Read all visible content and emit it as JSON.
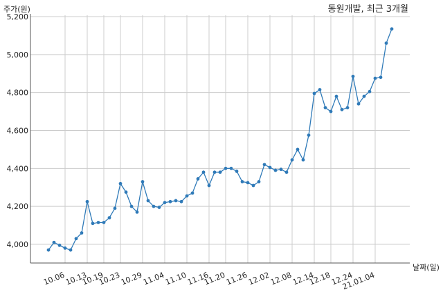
{
  "chart_data": {
    "type": "line",
    "title": "동원개발, 최근 3개월",
    "xlabel": "날짜(일)",
    "ylabel": "주가(원)",
    "ylim": [
      3900,
      5200
    ],
    "yticks": [
      4000,
      4200,
      4400,
      4600,
      4800,
      5000,
      5200
    ],
    "ytick_labels": [
      "4,000",
      "4,200",
      "4,400",
      "4,600",
      "4,800",
      "5,000",
      "5,200"
    ],
    "xtick_labels": [
      "10.06",
      "10.13",
      "10.19",
      "10.23",
      "10.29",
      "11.04",
      "11.10",
      "11.16",
      "11.20",
      "11.26",
      "12.02",
      "12.08",
      "12.14",
      "12.18",
      "12.24",
      "21.01.04"
    ],
    "xtick_index": [
      3,
      7,
      10,
      13,
      17,
      21,
      25,
      29,
      32,
      36,
      40,
      44,
      48,
      51,
      55,
      59
    ],
    "grid": true,
    "line_color": "#2f7ab8",
    "series": [
      {
        "values": [
          3970,
          4010,
          3995,
          3980,
          3970,
          4030,
          4060,
          4225,
          4110,
          4115,
          4115,
          4140,
          4190,
          4320,
          4275,
          4200,
          4170,
          4330,
          4230,
          4200,
          4195,
          4220,
          4225,
          4230,
          4225,
          4255,
          4270,
          4345,
          4380,
          4310,
          4380,
          4380,
          4400,
          4400,
          4385,
          4330,
          4325,
          4310,
          4330,
          4420,
          4405,
          4390,
          4395,
          4380,
          4445,
          4500,
          4445,
          4575,
          4795,
          4815,
          4720,
          4700,
          4780,
          4710,
          4720,
          4885,
          4740,
          4780,
          4805,
          4875,
          4880,
          5060,
          5135
        ]
      }
    ]
  }
}
